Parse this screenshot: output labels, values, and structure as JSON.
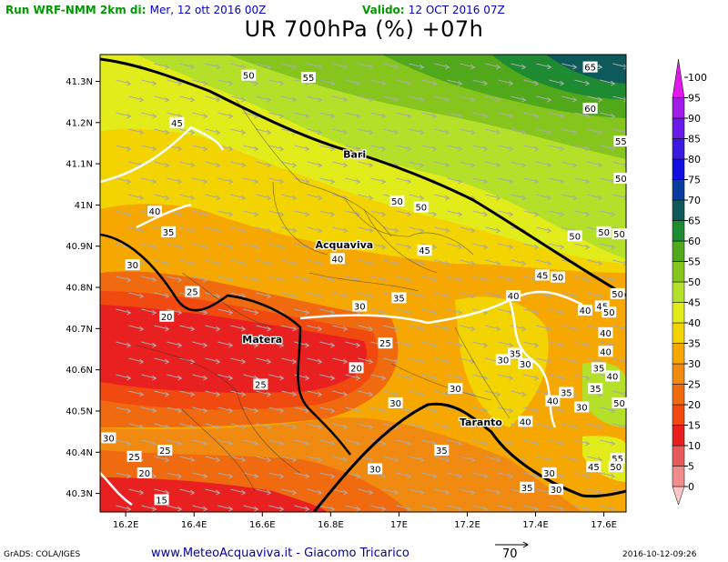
{
  "header": {
    "run_label": "Run WRF-NMM 2km di:",
    "run_date": "Mer, 12 ott 2016 00Z",
    "valid_label": "Valido:",
    "valid_date": "12 OCT 2016 07Z"
  },
  "title": "UR 700hPa (%) +07h",
  "axes": {
    "x_ticks": [
      "16.2E",
      "16.4E",
      "16.6E",
      "16.8E",
      "17E",
      "17.2E",
      "17.4E",
      "17.6E"
    ],
    "x_values": [
      16.2,
      16.4,
      16.6,
      16.8,
      17.0,
      17.2,
      17.4,
      17.6
    ],
    "y_ticks": [
      "41.3N",
      "41.2N",
      "41.1N",
      "41N",
      "40.9N",
      "40.8N",
      "40.7N",
      "40.6N",
      "40.5N",
      "40.4N",
      "40.3N"
    ],
    "y_values": [
      41.3,
      41.2,
      41.1,
      41.0,
      40.9,
      40.8,
      40.7,
      40.6,
      40.5,
      40.4,
      40.3
    ],
    "lon_range": [
      16.125,
      17.665
    ],
    "lat_range": [
      40.255,
      41.365
    ]
  },
  "colorbar": {
    "labels": [
      "0",
      "5",
      "10",
      "15",
      "20",
      "25",
      "30",
      "35",
      "40",
      "45",
      "50",
      "55",
      "60",
      "65",
      "70",
      "75",
      "80",
      "85",
      "90",
      "95",
      "100"
    ],
    "colors": [
      "#ffc8c8",
      "#f08c8c",
      "#e85a5a",
      "#e82020",
      "#f04a10",
      "#f06a10",
      "#f08a10",
      "#f7a800",
      "#f3d300",
      "#e2ec1a",
      "#b4e02a",
      "#86c41e",
      "#50a81a",
      "#1e8a32",
      "#0e5a5a",
      "#0a3ca0",
      "#1010e0",
      "#3a1ae0",
      "#6a1ae8",
      "#a01ae8",
      "#e01ae8"
    ]
  },
  "cities": [
    {
      "name": "Bari",
      "lon": 16.87,
      "lat": 41.115
    },
    {
      "name": "Acquaviva",
      "lon": 16.84,
      "lat": 40.895
    },
    {
      "name": "Matera",
      "lon": 16.6,
      "lat": 40.665
    },
    {
      "name": "Taranto",
      "lon": 17.24,
      "lat": 40.465
    }
  ],
  "contour_labels": [
    {
      "text": "65",
      "lon": 17.56,
      "lat": 41.335
    },
    {
      "text": "60",
      "lon": 17.56,
      "lat": 41.235
    },
    {
      "text": "55",
      "lon": 16.735,
      "lat": 41.31
    },
    {
      "text": "50",
      "lon": 16.56,
      "lat": 41.315
    },
    {
      "text": "45",
      "lon": 16.35,
      "lat": 41.2
    },
    {
      "text": "55",
      "lon": 17.65,
      "lat": 41.155
    },
    {
      "text": "50",
      "lon": 17.65,
      "lat": 41.065
    },
    {
      "text": "50",
      "lon": 16.995,
      "lat": 41.01
    },
    {
      "text": "50",
      "lon": 17.065,
      "lat": 40.995
    },
    {
      "text": "40",
      "lon": 16.285,
      "lat": 40.985
    },
    {
      "text": "35",
      "lon": 16.325,
      "lat": 40.935
    },
    {
      "text": "50",
      "lon": 17.6,
      "lat": 40.935
    },
    {
      "text": "50",
      "lon": 17.645,
      "lat": 40.93
    },
    {
      "text": "50",
      "lon": 17.515,
      "lat": 40.925
    },
    {
      "text": "40",
      "lon": 16.82,
      "lat": 40.87
    },
    {
      "text": "45",
      "lon": 17.075,
      "lat": 40.89
    },
    {
      "text": "30",
      "lon": 16.22,
      "lat": 40.855
    },
    {
      "text": "45",
      "lon": 17.42,
      "lat": 40.83
    },
    {
      "text": "50",
      "lon": 17.465,
      "lat": 40.825
    },
    {
      "text": "50",
      "lon": 17.64,
      "lat": 40.785
    },
    {
      "text": "25",
      "lon": 16.395,
      "lat": 40.79
    },
    {
      "text": "40",
      "lon": 17.335,
      "lat": 40.78
    },
    {
      "text": "35",
      "lon": 17.0,
      "lat": 40.775
    },
    {
      "text": "30",
      "lon": 16.885,
      "lat": 40.755
    },
    {
      "text": "45",
      "lon": 17.595,
      "lat": 40.755
    },
    {
      "text": "40",
      "lon": 17.545,
      "lat": 40.745
    },
    {
      "text": "50",
      "lon": 17.615,
      "lat": 40.74
    },
    {
      "text": "20",
      "lon": 16.32,
      "lat": 40.73
    },
    {
      "text": "40",
      "lon": 17.605,
      "lat": 40.69
    },
    {
      "text": "25",
      "lon": 16.96,
      "lat": 40.665
    },
    {
      "text": "40",
      "lon": 17.605,
      "lat": 40.645
    },
    {
      "text": "35",
      "lon": 17.34,
      "lat": 40.64
    },
    {
      "text": "30",
      "lon": 17.305,
      "lat": 40.625
    },
    {
      "text": "30",
      "lon": 17.37,
      "lat": 40.615
    },
    {
      "text": "20",
      "lon": 16.875,
      "lat": 40.605
    },
    {
      "text": "35",
      "lon": 17.585,
      "lat": 40.605
    },
    {
      "text": "40",
      "lon": 17.625,
      "lat": 40.585
    },
    {
      "text": "25",
      "lon": 16.595,
      "lat": 40.565
    },
    {
      "text": "30",
      "lon": 17.165,
      "lat": 40.555
    },
    {
      "text": "35",
      "lon": 17.575,
      "lat": 40.555
    },
    {
      "text": "35",
      "lon": 17.49,
      "lat": 40.545
    },
    {
      "text": "40",
      "lon": 17.45,
      "lat": 40.525
    },
    {
      "text": "30",
      "lon": 16.99,
      "lat": 40.52
    },
    {
      "text": "50",
      "lon": 17.645,
      "lat": 40.52
    },
    {
      "text": "30",
      "lon": 17.535,
      "lat": 40.51
    },
    {
      "text": "40",
      "lon": 17.37,
      "lat": 40.475
    },
    {
      "text": "30",
      "lon": 16.15,
      "lat": 40.435
    },
    {
      "text": "35",
      "lon": 17.125,
      "lat": 40.405
    },
    {
      "text": "25",
      "lon": 16.315,
      "lat": 40.405
    },
    {
      "text": "25",
      "lon": 16.225,
      "lat": 40.39
    },
    {
      "text": "55",
      "lon": 17.64,
      "lat": 40.385
    },
    {
      "text": "45",
      "lon": 17.57,
      "lat": 40.365
    },
    {
      "text": "50",
      "lon": 17.635,
      "lat": 40.365
    },
    {
      "text": "30",
      "lon": 16.93,
      "lat": 40.36
    },
    {
      "text": "20",
      "lon": 16.255,
      "lat": 40.35
    },
    {
      "text": "30",
      "lon": 17.44,
      "lat": 40.35
    },
    {
      "text": "35",
      "lon": 17.375,
      "lat": 40.315
    },
    {
      "text": "30",
      "lon": 17.46,
      "lat": 40.31
    },
    {
      "text": "15",
      "lon": 16.305,
      "lat": 40.285
    }
  ],
  "footer": {
    "software": "GrADS: COLA/IGES",
    "website": "www.MeteoAcquaviva.it - Giacomo Tricarico",
    "vector_scale": "70",
    "timestamp": "2016-10-12-09:26"
  }
}
